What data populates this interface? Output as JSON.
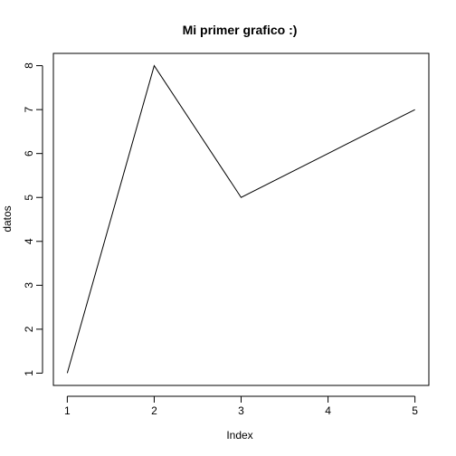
{
  "chart_data": {
    "type": "line",
    "title": "Mi primer grafico :)",
    "xlabel": "Index",
    "ylabel": "datos",
    "x": [
      1,
      2,
      3,
      4,
      5
    ],
    "series": [
      {
        "values": [
          1,
          8,
          5,
          6,
          7
        ]
      }
    ],
    "xlim": [
      0.84,
      5.16
    ],
    "ylim": [
      0.72,
      8.28
    ],
    "x_ticks": [
      1,
      2,
      3,
      4,
      5
    ],
    "y_ticks": [
      1,
      2,
      3,
      4,
      5,
      6,
      7,
      8
    ],
    "x_tick_labels": [
      "1",
      "2",
      "3",
      "4",
      "5"
    ],
    "y_tick_labels": [
      "1",
      "2",
      "3",
      "4",
      "5",
      "6",
      "7",
      "8"
    ],
    "grid": false,
    "legend": "none",
    "line_color": "#000000",
    "axis_color": "#000000",
    "background": "#ffffff"
  }
}
